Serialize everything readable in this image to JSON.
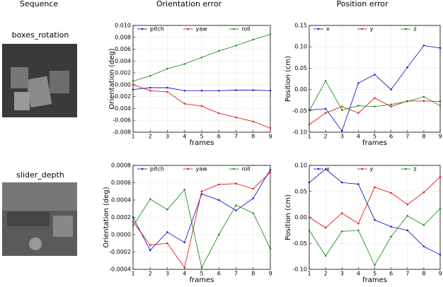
{
  "headers": [
    "Sequence",
    "Orientation error",
    "Position error"
  ],
  "sequences": [
    "boxes_rotation",
    "slider_depth"
  ],
  "chart_data": [
    {
      "type": "line",
      "xlabel": "frames",
      "ylabel": "Orientation (deg)",
      "grid": true,
      "legend": "top",
      "x": [
        1,
        2,
        3,
        4,
        5,
        6,
        7,
        8,
        9
      ],
      "xlim": [
        1,
        9
      ],
      "xticks": [
        1,
        2,
        3,
        4,
        5,
        6,
        7,
        8,
        9
      ],
      "ylim": [
        -0.008,
        0.01
      ],
      "yticks": [
        -0.008,
        -0.006,
        -0.004,
        -0.002,
        {
          "value": 0,
          "label": "0.000"
        },
        0.002,
        0.004,
        0.006,
        0.008,
        {
          "value": 0.01,
          "label": "0.010"
        }
      ],
      "series": [
        {
          "name": "pitch",
          "color": "#0000cc",
          "values": [
            -0.0008,
            -0.0005,
            -0.0005,
            -0.001,
            -0.001,
            -0.001,
            -0.0009,
            -0.0009,
            -0.001
          ]
        },
        {
          "name": "yaw",
          "color": "#dd0000",
          "values": [
            0.0,
            -0.001,
            -0.0012,
            -0.0032,
            -0.0036,
            -0.0048,
            -0.0055,
            -0.0062,
            -0.0073
          ]
        },
        {
          "name": "roll",
          "color": "#008800",
          "values": [
            0.0006,
            0.0015,
            0.0027,
            0.0035,
            0.0046,
            0.0057,
            0.0066,
            0.0076,
            0.0085
          ]
        }
      ]
    },
    {
      "type": "line",
      "xlabel": "frames",
      "ylabel": "Position (cm)",
      "grid": true,
      "legend": "top",
      "x": [
        1,
        2,
        3,
        4,
        5,
        6,
        7,
        8,
        9
      ],
      "xlim": [
        1,
        9
      ],
      "xticks": [
        1,
        2,
        3,
        4,
        5,
        6,
        7,
        8,
        9
      ],
      "ylim": [
        -0.1,
        0.15
      ],
      "yticks": [
        {
          "value": -0.1,
          "label": "-0.10"
        },
        -0.05,
        {
          "value": 0,
          "label": "0.00"
        },
        0.05,
        {
          "value": 0.1,
          "label": "0.10"
        },
        0.15
      ],
      "series": [
        {
          "name": "x",
          "color": "#0000cc",
          "values": [
            -0.048,
            -0.045,
            -0.097,
            0.015,
            0.035,
            0.0,
            0.052,
            0.103,
            0.097
          ]
        },
        {
          "name": "y",
          "color": "#dd0000",
          "values": [
            -0.082,
            -0.055,
            -0.04,
            -0.055,
            -0.02,
            -0.04,
            -0.027,
            -0.027,
            -0.028
          ]
        },
        {
          "name": "z",
          "color": "#008800",
          "values": [
            -0.05,
            0.02,
            -0.048,
            -0.038,
            -0.04,
            -0.035,
            -0.028,
            -0.017,
            -0.038
          ]
        }
      ]
    },
    {
      "type": "line",
      "xlabel": "frames",
      "ylabel": "Orientation (deg)",
      "grid": true,
      "legend": "top",
      "x": [
        1,
        2,
        3,
        4,
        5,
        6,
        7,
        8,
        9
      ],
      "xlim": [
        1,
        9
      ],
      "xticks": [
        1,
        2,
        3,
        4,
        5,
        6,
        7,
        8,
        9
      ],
      "ylim": [
        -0.0004,
        0.0008
      ],
      "yticks": [
        -0.0004,
        -0.0002,
        {
          "value": 0,
          "label": "0.0000"
        },
        0.0002,
        0.0004,
        0.0006,
        0.0008
      ],
      "series": [
        {
          "name": "pitch",
          "color": "#0000cc",
          "values": [
            0.0002,
            -0.00018,
            3e-05,
            -9e-05,
            0.00047,
            0.0004,
            0.00028,
            0.00042,
            0.00075
          ]
        },
        {
          "name": "yaw",
          "color": "#dd0000",
          "values": [
            0.00015,
            -0.00012,
            -0.0001,
            -0.00038,
            0.0005,
            0.00058,
            0.00059,
            0.00053,
            0.00072
          ]
        },
        {
          "name": "roll",
          "color": "#008800",
          "values": [
            0.0001,
            0.00041,
            0.00029,
            0.00052,
            -0.00038,
            0.0,
            0.00034,
            0.00025,
            -0.00016
          ]
        }
      ]
    },
    {
      "type": "line",
      "xlabel": "frames",
      "ylabel": "Position (cm)",
      "grid": true,
      "legend": "top",
      "x": [
        1,
        2,
        3,
        4,
        5,
        6,
        7,
        8,
        9
      ],
      "xlim": [
        1,
        9
      ],
      "xticks": [
        1,
        2,
        3,
        4,
        5,
        6,
        7,
        8,
        9
      ],
      "ylim": [
        -0.1,
        0.1
      ],
      "yticks": [
        {
          "value": -0.1,
          "label": "-0.10"
        },
        -0.05,
        {
          "value": 0,
          "label": "0.00"
        },
        0.05,
        {
          "value": 0.1,
          "label": "0.10"
        }
      ],
      "series": [
        {
          "name": "x",
          "color": "#0000cc",
          "values": [
            0.067,
            0.093,
            0.067,
            0.064,
            -0.005,
            -0.018,
            -0.025,
            -0.056,
            -0.072
          ]
        },
        {
          "name": "y",
          "color": "#dd0000",
          "values": [
            0.0,
            -0.02,
            0.008,
            -0.012,
            0.058,
            0.047,
            0.025,
            0.048,
            0.078
          ]
        },
        {
          "name": "z",
          "color": "#008800",
          "values": [
            -0.025,
            -0.074,
            -0.027,
            -0.025,
            -0.092,
            -0.037,
            0.003,
            -0.015,
            0.017
          ]
        }
      ]
    }
  ]
}
